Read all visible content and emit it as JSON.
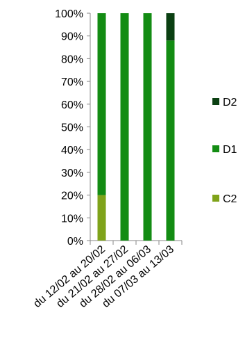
{
  "chart_data": {
    "type": "bar",
    "stacked": true,
    "percent": true,
    "categories": [
      "du 12/02 au 20/02",
      "du 21/02 au 27/02",
      "du 28/02 au 06/03",
      "du 07/03 au 13/03"
    ],
    "series": [
      {
        "name": "C2",
        "color": "#7fa31a",
        "values": [
          20,
          0,
          0,
          0
        ]
      },
      {
        "name": "D1",
        "color": "#138c13",
        "values": [
          80,
          100,
          100,
          88
        ]
      },
      {
        "name": "D2",
        "color": "#0b4012",
        "values": [
          0,
          0,
          0,
          12
        ]
      }
    ],
    "ylim": [
      0,
      100
    ],
    "yticks": [
      "0%",
      "10%",
      "20%",
      "30%",
      "40%",
      "50%",
      "60%",
      "70%",
      "80%",
      "90%",
      "100%"
    ],
    "legend_position": "right",
    "grid": false
  }
}
